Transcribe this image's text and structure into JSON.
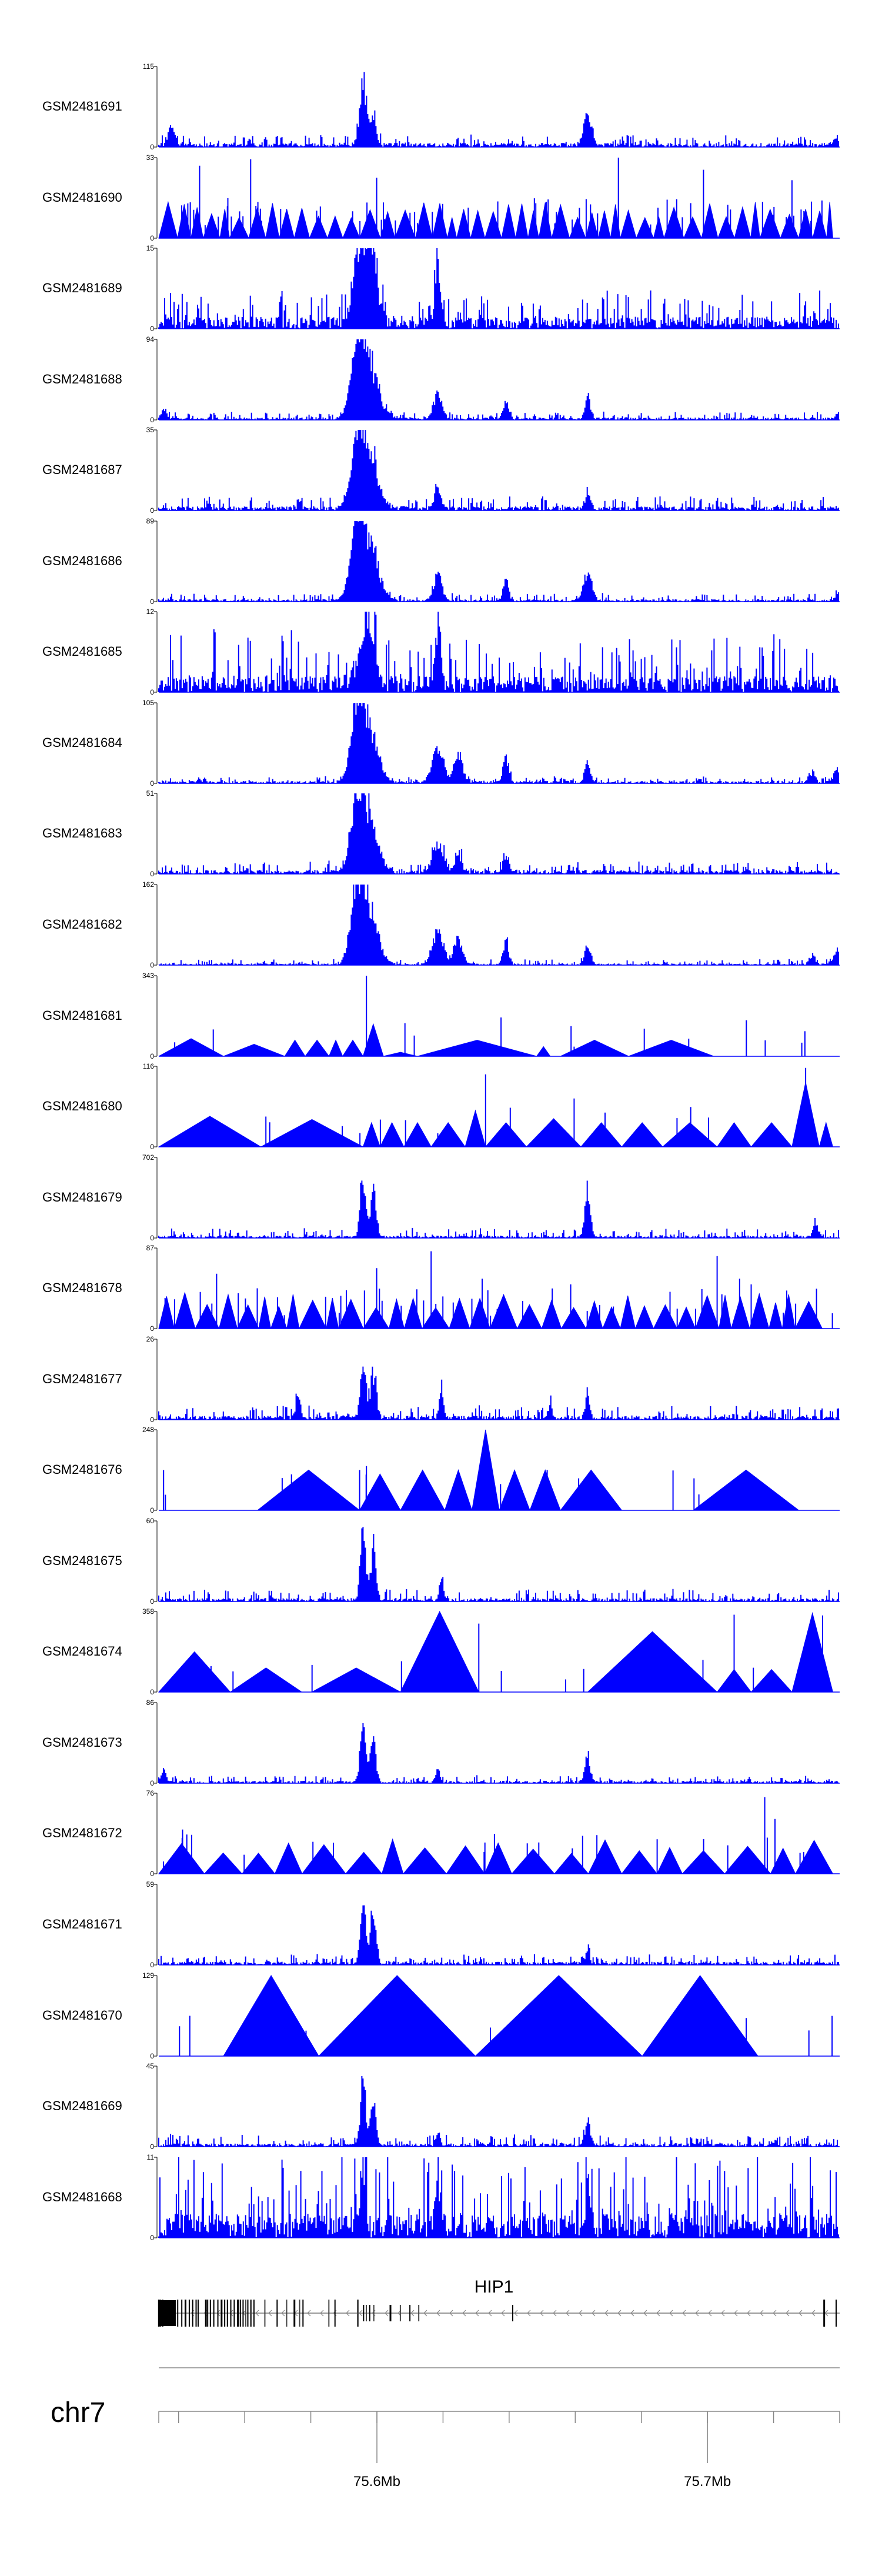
{
  "chart_data": {
    "type": "area",
    "title": "",
    "chromosome": "chr7",
    "gene": "HIP1",
    "x_unit": "Mb",
    "xlim": [
      75.534,
      75.74
    ],
    "x_tick_labels": [
      {
        "label": "75.6Mb",
        "value": 75.6
      },
      {
        "label": "75.7Mb",
        "value": 75.7
      }
    ],
    "x_minor_ticks": [
      75.54,
      75.56,
      75.58,
      75.6,
      75.62,
      75.64,
      75.66,
      75.68,
      75.7,
      75.72,
      75.74
    ],
    "color": "#0000ff",
    "series": [
      {
        "name": "GSM2481691",
        "ylim": [
          0,
          115
        ],
        "style": "dense",
        "seed": 11,
        "base": 0.05,
        "noise": 0.06,
        "peaks": [
          [
            0.018,
            0.28,
            0.004
          ],
          [
            0.3,
            1.0,
            0.005
          ],
          [
            0.315,
            0.5,
            0.004
          ],
          [
            0.63,
            0.45,
            0.006
          ],
          [
            0.998,
            0.12,
            0.006
          ]
        ]
      },
      {
        "name": "GSM2481690",
        "ylim": [
          0,
          33
        ],
        "style": "triangles",
        "seed": 12,
        "density": "high",
        "spikes": [
          [
            0.06,
            0.9
          ],
          [
            0.135,
            0.98
          ],
          [
            0.32,
            0.75
          ],
          [
            0.675,
            1.0
          ],
          [
            0.8,
            0.85
          ],
          [
            0.93,
            0.72
          ]
        ]
      },
      {
        "name": "GSM2481689",
        "ylim": [
          0,
          15
        ],
        "style": "dense",
        "seed": 13,
        "base": 0.15,
        "noise": 0.18,
        "peaks": [
          [
            0.3,
            0.95,
            0.01
          ],
          [
            0.315,
            0.7,
            0.008
          ],
          [
            0.41,
            0.75,
            0.004
          ],
          [
            0.29,
            0.45,
            0.006
          ]
        ]
      },
      {
        "name": "GSM2481688",
        "ylim": [
          0,
          94
        ],
        "style": "dense",
        "seed": 14,
        "base": 0.03,
        "noise": 0.04,
        "peaks": [
          [
            0.305,
            0.95,
            0.015
          ],
          [
            0.29,
            0.65,
            0.008
          ],
          [
            0.41,
            0.38,
            0.006
          ],
          [
            0.51,
            0.25,
            0.004
          ],
          [
            0.63,
            0.32,
            0.004
          ],
          [
            0.008,
            0.15,
            0.004
          ],
          [
            0.998,
            0.1,
            0.004
          ]
        ]
      },
      {
        "name": "GSM2481687",
        "ylim": [
          0,
          35
        ],
        "style": "dense",
        "seed": 15,
        "base": 0.05,
        "noise": 0.07,
        "peaks": [
          [
            0.305,
            0.98,
            0.014
          ],
          [
            0.29,
            0.6,
            0.008
          ],
          [
            0.41,
            0.3,
            0.005
          ],
          [
            0.63,
            0.2,
            0.004
          ]
        ]
      },
      {
        "name": "GSM2481686",
        "ylim": [
          0,
          89
        ],
        "style": "dense",
        "seed": 16,
        "base": 0.03,
        "noise": 0.04,
        "peaks": [
          [
            0.305,
            0.97,
            0.015
          ],
          [
            0.29,
            0.7,
            0.008
          ],
          [
            0.41,
            0.38,
            0.006
          ],
          [
            0.51,
            0.3,
            0.004
          ],
          [
            0.63,
            0.42,
            0.006
          ],
          [
            0.998,
            0.12,
            0.004
          ]
        ]
      },
      {
        "name": "GSM2481685",
        "ylim": [
          0,
          12
        ],
        "style": "dense",
        "seed": 17,
        "base": 0.2,
        "noise": 0.3,
        "peaks": [
          [
            0.3,
            0.6,
            0.01
          ],
          [
            0.41,
            0.95,
            0.004
          ],
          [
            0.315,
            0.55,
            0.006
          ]
        ]
      },
      {
        "name": "GSM2481684",
        "ylim": [
          0,
          105
        ],
        "style": "dense",
        "seed": 18,
        "base": 0.03,
        "noise": 0.03,
        "peaks": [
          [
            0.305,
            0.95,
            0.014
          ],
          [
            0.29,
            0.7,
            0.008
          ],
          [
            0.41,
            0.55,
            0.008
          ],
          [
            0.44,
            0.45,
            0.006
          ],
          [
            0.51,
            0.4,
            0.004
          ],
          [
            0.63,
            0.3,
            0.004
          ],
          [
            0.96,
            0.15,
            0.004
          ],
          [
            0.998,
            0.2,
            0.006
          ]
        ]
      },
      {
        "name": "GSM2481683",
        "ylim": [
          0,
          51
        ],
        "style": "dense",
        "seed": 19,
        "base": 0.05,
        "noise": 0.06,
        "peaks": [
          [
            0.305,
            0.95,
            0.014
          ],
          [
            0.29,
            0.7,
            0.008
          ],
          [
            0.41,
            0.42,
            0.008
          ],
          [
            0.44,
            0.3,
            0.005
          ],
          [
            0.51,
            0.2,
            0.004
          ]
        ]
      },
      {
        "name": "GSM2481682",
        "ylim": [
          0,
          162
        ],
        "style": "dense",
        "seed": 20,
        "base": 0.02,
        "noise": 0.03,
        "peaks": [
          [
            0.305,
            0.97,
            0.014
          ],
          [
            0.29,
            0.75,
            0.008
          ],
          [
            0.41,
            0.5,
            0.008
          ],
          [
            0.44,
            0.38,
            0.006
          ],
          [
            0.51,
            0.35,
            0.004
          ],
          [
            0.63,
            0.28,
            0.004
          ],
          [
            0.96,
            0.15,
            0.004
          ],
          [
            0.998,
            0.22,
            0.006
          ]
        ]
      },
      {
        "name": "GSM2481681",
        "ylim": [
          0,
          343
        ],
        "style": "triangles",
        "seed": 21,
        "density": "custom",
        "tris": [
          [
            0.0,
            0.095,
            0.22
          ],
          [
            0.095,
            0.185,
            0.15
          ],
          [
            0.185,
            0.185,
            0.0
          ],
          [
            0.185,
            0.215,
            0.2
          ],
          [
            0.215,
            0.25,
            0.2
          ],
          [
            0.25,
            0.27,
            0.2
          ],
          [
            0.27,
            0.3,
            0.2
          ],
          [
            0.3,
            0.33,
            0.4
          ],
          [
            0.33,
            0.38,
            0.05
          ],
          [
            0.38,
            0.555,
            0.2
          ],
          [
            0.555,
            0.575,
            0.12
          ],
          [
            0.575,
            0.59,
            0.0
          ],
          [
            0.59,
            0.69,
            0.2
          ],
          [
            0.69,
            0.815,
            0.2
          ],
          [
            0.815,
            0.915,
            0.0
          ]
        ],
        "spikes": [
          [
            0.305,
            1.0
          ],
          [
            0.61,
            0.12
          ]
        ]
      },
      {
        "name": "GSM2481680",
        "ylim": [
          0,
          116
        ],
        "style": "triangles",
        "seed": 22,
        "density": "custom",
        "tris": [
          [
            0.0,
            0.15,
            0.38
          ],
          [
            0.15,
            0.3,
            0.34
          ],
          [
            0.3,
            0.325,
            0.3
          ],
          [
            0.325,
            0.36,
            0.3
          ],
          [
            0.36,
            0.4,
            0.3
          ],
          [
            0.4,
            0.45,
            0.3
          ],
          [
            0.45,
            0.48,
            0.45
          ],
          [
            0.48,
            0.54,
            0.3
          ],
          [
            0.54,
            0.62,
            0.35
          ],
          [
            0.62,
            0.68,
            0.3
          ],
          [
            0.68,
            0.74,
            0.3
          ],
          [
            0.74,
            0.82,
            0.3
          ],
          [
            0.82,
            0.87,
            0.3
          ],
          [
            0.87,
            0.93,
            0.3
          ],
          [
            0.93,
            0.97,
            0.8
          ],
          [
            0.97,
            0.99,
            0.3
          ]
        ],
        "spikes": [
          [
            0.48,
            0.9
          ],
          [
            0.61,
            0.6
          ],
          [
            0.95,
            0.98
          ]
        ]
      },
      {
        "name": "GSM2481679",
        "ylim": [
          0,
          702
        ],
        "style": "dense",
        "seed": 23,
        "base": 0.03,
        "noise": 0.05,
        "peaks": [
          [
            0.3,
            0.98,
            0.004
          ],
          [
            0.315,
            0.7,
            0.004
          ],
          [
            0.63,
            0.75,
            0.004
          ],
          [
            0.965,
            0.2,
            0.004
          ]
        ]
      },
      {
        "name": "GSM2481678",
        "ylim": [
          0,
          87
        ],
        "style": "triangles",
        "seed": 24,
        "density": "mid",
        "spikes": [
          [
            0.085,
            0.68
          ],
          [
            0.32,
            0.75
          ],
          [
            0.4,
            0.96
          ],
          [
            0.475,
            0.62
          ],
          [
            0.605,
            0.55
          ],
          [
            0.82,
            0.9
          ],
          [
            0.853,
            0.62
          ],
          [
            0.87,
            0.55
          ]
        ]
      },
      {
        "name": "GSM2481677",
        "ylim": [
          0,
          26
        ],
        "style": "dense",
        "seed": 25,
        "base": 0.05,
        "noise": 0.07,
        "peaks": [
          [
            0.3,
            0.8,
            0.004
          ],
          [
            0.315,
            0.72,
            0.004
          ],
          [
            0.205,
            0.42,
            0.003
          ],
          [
            0.415,
            0.4,
            0.003
          ],
          [
            0.63,
            0.4,
            0.003
          ],
          [
            0.575,
            0.18,
            0.003
          ]
        ]
      },
      {
        "name": "GSM2481676",
        "ylim": [
          0,
          248
        ],
        "style": "triangles",
        "seed": 26,
        "density": "custom",
        "tris": [
          [
            0.145,
            0.295,
            0.5
          ],
          [
            0.295,
            0.355,
            0.45
          ],
          [
            0.355,
            0.42,
            0.5
          ],
          [
            0.42,
            0.46,
            0.5
          ],
          [
            0.46,
            0.5,
            1.0
          ],
          [
            0.5,
            0.545,
            0.5
          ],
          [
            0.545,
            0.59,
            0.5
          ],
          [
            0.59,
            0.68,
            0.5
          ],
          [
            0.68,
            0.785,
            0.0
          ],
          [
            0.785,
            0.94,
            0.5
          ]
        ],
        "spikes": [
          [
            0.295,
            0.5
          ],
          [
            0.305,
            0.55
          ]
        ]
      },
      {
        "name": "GSM2481675",
        "ylim": [
          0,
          60
        ],
        "style": "dense",
        "seed": 27,
        "base": 0.04,
        "noise": 0.06,
        "peaks": [
          [
            0.3,
            0.95,
            0.004
          ],
          [
            0.315,
            0.75,
            0.004
          ],
          [
            0.415,
            0.32,
            0.003
          ]
        ]
      },
      {
        "name": "GSM2481674",
        "ylim": [
          0,
          358
        ],
        "style": "triangles",
        "seed": 28,
        "density": "custom",
        "tris": [
          [
            0.0,
            0.105,
            0.5
          ],
          [
            0.105,
            0.21,
            0.3
          ],
          [
            0.21,
            0.225,
            0.0
          ],
          [
            0.225,
            0.355,
            0.3
          ],
          [
            0.355,
            0.47,
            1.0
          ],
          [
            0.47,
            0.63,
            0.0
          ],
          [
            0.63,
            0.82,
            0.75
          ],
          [
            0.82,
            0.87,
            0.28
          ],
          [
            0.87,
            0.93,
            0.28
          ],
          [
            0.93,
            0.99,
            0.98
          ]
        ],
        "spikes": [
          [
            0.47,
            0.85
          ],
          [
            0.845,
            0.96
          ],
          [
            0.975,
            0.95
          ]
        ]
      },
      {
        "name": "GSM2481673",
        "ylim": [
          0,
          86
        ],
        "style": "dense",
        "seed": 29,
        "base": 0.03,
        "noise": 0.04,
        "peaks": [
          [
            0.3,
            0.95,
            0.004
          ],
          [
            0.315,
            0.65,
            0.004
          ],
          [
            0.41,
            0.2,
            0.003
          ],
          [
            0.63,
            0.38,
            0.004
          ],
          [
            0.008,
            0.2,
            0.003
          ]
        ]
      },
      {
        "name": "GSM2481672",
        "ylim": [
          0,
          76
        ],
        "style": "triangles",
        "seed": 30,
        "density": "lowmid",
        "spikes": [
          [
            0.035,
            0.55
          ],
          [
            0.89,
            0.95
          ],
          [
            0.905,
            0.68
          ]
        ]
      },
      {
        "name": "GSM2481671",
        "ylim": [
          0,
          59
        ],
        "style": "dense",
        "seed": 31,
        "base": 0.04,
        "noise": 0.05,
        "peaks": [
          [
            0.3,
            0.95,
            0.004
          ],
          [
            0.315,
            0.72,
            0.004
          ],
          [
            0.63,
            0.18,
            0.003
          ]
        ]
      },
      {
        "name": "GSM2481670",
        "ylim": [
          0,
          129
        ],
        "style": "triangles",
        "seed": 32,
        "density": "custom",
        "tris": [
          [
            0.095,
            0.235,
            1.0
          ],
          [
            0.235,
            0.465,
            1.0
          ],
          [
            0.465,
            0.71,
            1.0
          ],
          [
            0.71,
            0.88,
            1.0
          ]
        ],
        "spikes": []
      },
      {
        "name": "GSM2481669",
        "ylim": [
          0,
          45
        ],
        "style": "dense",
        "seed": 33,
        "base": 0.04,
        "noise": 0.06,
        "peaks": [
          [
            0.3,
            0.97,
            0.004
          ],
          [
            0.315,
            0.65,
            0.004
          ],
          [
            0.63,
            0.35,
            0.004
          ],
          [
            0.41,
            0.2,
            0.003
          ]
        ]
      },
      {
        "name": "GSM2481668",
        "ylim": [
          0,
          11
        ],
        "style": "dense",
        "seed": 34,
        "base": 0.3,
        "noise": 0.45,
        "peaks": [
          [
            0.3,
            0.95,
            0.003
          ],
          [
            0.41,
            0.8,
            0.003
          ],
          [
            0.63,
            0.7,
            0.003
          ]
        ]
      }
    ],
    "gene_model": {
      "name": "HIP1",
      "strand": "-",
      "exons": [
        0.0,
        0.003,
        0.006,
        0.028,
        0.034,
        0.039,
        0.045,
        0.05,
        0.055,
        0.058,
        0.069,
        0.072,
        0.076,
        0.081,
        0.087,
        0.092,
        0.097,
        0.101,
        0.106,
        0.111,
        0.116,
        0.12,
        0.124,
        0.128,
        0.131,
        0.135,
        0.14,
        0.156,
        0.174,
        0.188,
        0.199,
        0.207,
        0.212,
        0.25,
        0.259,
        0.292,
        0.301,
        0.305,
        0.31,
        0.316,
        0.34,
        0.355,
        0.369,
        0.382,
        0.52,
        0.977,
        0.995
      ],
      "thick_block": [
        0.0,
        0.025
      ]
    }
  }
}
